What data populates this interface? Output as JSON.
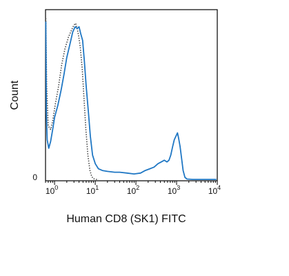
{
  "chart_data": {
    "type": "line",
    "xlabel": "Human CD8 (SK1) FITC",
    "ylabel": "Count",
    "x_scale": "log",
    "xlim": [
      0.6,
      10000
    ],
    "ylim": [
      0,
      100
    ],
    "x_tick_labels": [
      {
        "value": 1,
        "base": "10",
        "exp": "0"
      },
      {
        "value": 10,
        "base": "10",
        "exp": "1"
      },
      {
        "value": 100,
        "base": "10",
        "exp": "2"
      },
      {
        "value": 1000,
        "base": "10",
        "exp": "3"
      },
      {
        "value": 10000,
        "base": "10",
        "exp": "4"
      }
    ],
    "y_tick_labels": [
      {
        "value": 0,
        "label": "0"
      }
    ],
    "grid": false,
    "series": [
      {
        "style": "solid",
        "color": "#1f77c4",
        "points": [
          [
            0.61,
            93
          ],
          [
            0.63,
            40
          ],
          [
            0.66,
            24
          ],
          [
            0.72,
            19
          ],
          [
            0.8,
            23
          ],
          [
            0.9,
            30
          ],
          [
            1.0,
            37
          ],
          [
            1.2,
            44
          ],
          [
            1.45,
            53
          ],
          [
            1.7,
            62
          ],
          [
            2.0,
            72
          ],
          [
            2.4,
            80
          ],
          [
            2.8,
            87
          ],
          [
            3.2,
            90
          ],
          [
            3.6,
            89
          ],
          [
            4.0,
            90
          ],
          [
            4.4,
            86
          ],
          [
            4.9,
            82
          ],
          [
            5.4,
            70
          ],
          [
            6.0,
            55
          ],
          [
            6.8,
            40
          ],
          [
            7.6,
            26
          ],
          [
            8.6,
            15
          ],
          [
            10,
            10
          ],
          [
            12,
            7
          ],
          [
            15,
            6
          ],
          [
            20,
            5.5
          ],
          [
            30,
            5
          ],
          [
            40,
            5
          ],
          [
            60,
            4.5
          ],
          [
            90,
            4
          ],
          [
            130,
            4.5
          ],
          [
            170,
            6
          ],
          [
            220,
            7
          ],
          [
            280,
            8
          ],
          [
            350,
            10
          ],
          [
            420,
            11
          ],
          [
            500,
            12
          ],
          [
            580,
            11
          ],
          [
            650,
            12
          ],
          [
            720,
            15
          ],
          [
            800,
            20
          ],
          [
            880,
            24
          ],
          [
            960,
            26
          ],
          [
            1050,
            28
          ],
          [
            1120,
            25
          ],
          [
            1220,
            20
          ],
          [
            1330,
            13
          ],
          [
            1450,
            6
          ],
          [
            1600,
            2
          ],
          [
            1800,
            1
          ],
          [
            2500,
            0.8
          ],
          [
            4000,
            0.8
          ],
          [
            7000,
            0.8
          ],
          [
            9500,
            0.8
          ]
        ]
      },
      {
        "style": "dotted",
        "color": "#444444",
        "points": [
          [
            0.61,
            95
          ],
          [
            0.64,
            55
          ],
          [
            0.7,
            32
          ],
          [
            0.8,
            30
          ],
          [
            0.9,
            35
          ],
          [
            1.05,
            45
          ],
          [
            1.25,
            55
          ],
          [
            1.5,
            68
          ],
          [
            1.8,
            77
          ],
          [
            2.2,
            84
          ],
          [
            2.6,
            88
          ],
          [
            3.0,
            91
          ],
          [
            3.3,
            92
          ],
          [
            3.6,
            89
          ],
          [
            3.9,
            85
          ],
          [
            4.3,
            78
          ],
          [
            4.8,
            65
          ],
          [
            5.3,
            48
          ],
          [
            5.9,
            30
          ],
          [
            6.6,
            15
          ],
          [
            7.4,
            6
          ],
          [
            8.2,
            2.5
          ],
          [
            9.0,
            1.2
          ],
          [
            10.5,
            0.8
          ],
          [
            12,
            0.8
          ]
        ]
      }
    ]
  }
}
